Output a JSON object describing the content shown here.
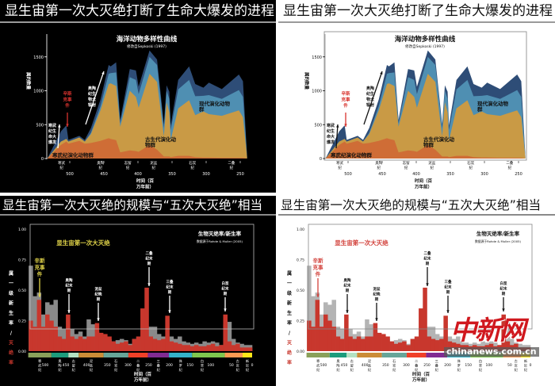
{
  "panels": [
    {
      "title": "显生宙第一次大灭绝打断了生命大爆发的进程",
      "theme": "dark",
      "chart": 0
    },
    {
      "title": "显生宙第一次大灭绝打断了生命大爆发的进程",
      "theme": "light",
      "chart": 0
    },
    {
      "title": "显生宙第一次大灭绝的规模与“五次大灭绝”相当",
      "theme": "dark",
      "chart": 1
    },
    {
      "title": "显生宙第一次大灭绝的规模与“五次大灭绝”相当",
      "theme": "light",
      "chart": 1
    }
  ],
  "watermark": {
    "logo": "中新网",
    "site": "chinanews.com.cn"
  },
  "colors": {
    "cambrian_fauna": "#cf6d36",
    "paleozoic_fauna": "#c99a45",
    "modern_fauna": "#4f8fb2",
    "top_layer": "#2e4d77",
    "extinction": "#c8372d",
    "origination_dark": "#8a8a8a",
    "origination_light": "#b4b4b4",
    "sinsk_label": "#d8332e",
    "highlight_dark": "#e3d64a",
    "highlight_light": "#d2403a"
  },
  "chart_data": [
    {
      "type": "area",
      "stacked": true,
      "title": "海洋动物多样性曲线",
      "subtitle": "修改自Sepkoski (1997)",
      "ylabel": "属的数量",
      "xlabel": "时间（百万年前）",
      "x_reversed": true,
      "ylim": [
        0,
        1800
      ],
      "yticks": [
        0,
        500,
        1000,
        1500
      ],
      "xticks": [
        500,
        450,
        400,
        350,
        300,
        250
      ],
      "period_labels": [
        {
          "label": "寒武纪",
          "at": 512
        },
        {
          "label": "奥陶纪",
          "at": 455
        },
        {
          "label": "志留纪",
          "at": 415
        },
        {
          "label": "泥盆纪",
          "at": 377
        },
        {
          "label": "石炭纪",
          "at": 320
        },
        {
          "label": "二叠纪",
          "at": 263
        }
      ],
      "x": [
        533,
        513,
        505,
        502,
        486,
        478,
        469,
        455,
        443,
        440,
        432,
        426,
        412,
        403,
        399,
        383,
        372,
        362,
        358,
        354,
        352,
        341,
        325,
        316,
        304,
        296,
        277,
        252,
        246,
        240
      ],
      "series": [
        {
          "name": "寒武纪演化动物群",
          "values": [
            0,
            200,
            250,
            220,
            260,
            220,
            230,
            260,
            300,
            290,
            270,
            90,
            120,
            110,
            100,
            200,
            130,
            30,
            30,
            30,
            20,
            40,
            40,
            20,
            15,
            15,
            10,
            10,
            10,
            0
          ]
        },
        {
          "name": "古生代演化动物群",
          "values": [
            0,
            50,
            40,
            30,
            50,
            30,
            130,
            450,
            800,
            820,
            800,
            380,
            880,
            800,
            650,
            1050,
            1000,
            300,
            800,
            650,
            250,
            700,
            820,
            620,
            680,
            640,
            620,
            700,
            600,
            20
          ]
        },
        {
          "name": "现代演化动物群",
          "values": [
            0,
            0,
            0,
            0,
            0,
            0,
            20,
            60,
            150,
            150,
            200,
            50,
            200,
            250,
            200,
            250,
            250,
            120,
            170,
            200,
            150,
            280,
            300,
            280,
            230,
            280,
            250,
            300,
            300,
            15
          ]
        },
        {
          "values": [
            0,
            150,
            200,
            25,
            25,
            25,
            70,
            100,
            130,
            100,
            150,
            50,
            120,
            140,
            110,
            95,
            80,
            60,
            80,
            105,
            70,
            140,
            200,
            180,
            120,
            185,
            145,
            230,
            230,
            5
          ]
        }
      ],
      "annotations": [
        {
          "text": "寒武纪生命大爆发",
          "arrow": "up"
        },
        {
          "text": "辛斯克事件",
          "arrow": "down",
          "color": "red"
        },
        {
          "text": "奥陶纪生物大辐射",
          "arrow": "up-right"
        }
      ]
    },
    {
      "type": "bar",
      "title": "生物灭绝率/新生率",
      "subtitle": "数据源于Rohde & Muller (2005)",
      "highlight": "显生宙第一次大灭绝",
      "ylabel_origination": "属一级新生率",
      "ylabel_sep": "/",
      "ylabel_extinction": "灭绝率",
      "xlabel": "时间（百万年前）",
      "x_reversed": true,
      "ylim": [
        0,
        1
      ],
      "yticks": [
        "0.00",
        "0.25",
        "0.50",
        "0.75",
        "1.00"
      ],
      "xticks": [
        500,
        450,
        400,
        350,
        300,
        250,
        200,
        150,
        100,
        50,
        0
      ],
      "bin_start": [
        540,
        530,
        520,
        510,
        500,
        490,
        480,
        470,
        460,
        450,
        440,
        430,
        420,
        410,
        400,
        390,
        380,
        370,
        360,
        350,
        340,
        330,
        320,
        310,
        300,
        290,
        280,
        270,
        260,
        250,
        240,
        230,
        220,
        210,
        200,
        190,
        180,
        170,
        160,
        150,
        140,
        130,
        120,
        110,
        100,
        90,
        80,
        70,
        60,
        50,
        40,
        30,
        20,
        10
      ],
      "series": [
        {
          "name": "新生率",
          "values": [
            0.7,
            0.45,
            0.48,
            0.3,
            0.4,
            0.38,
            0.42,
            0.2,
            0.18,
            0.15,
            0.18,
            0.14,
            0.16,
            0.12,
            0.26,
            0.22,
            0.16,
            0.1,
            0.12,
            0.1,
            0.08,
            0.09,
            0.1,
            0.09,
            0.06,
            0.1,
            0.12,
            0.1,
            0.08,
            0.2,
            0.2,
            0.14,
            0.12,
            0.08,
            0.12,
            0.1,
            0.12,
            0.08,
            0.07,
            0.06,
            0.07,
            0.06,
            0.08,
            0.07,
            0.08,
            0.07,
            0.05,
            0.22,
            0.24,
            0.1,
            0.07,
            0.06,
            0.05,
            0.05
          ]
        },
        {
          "name": "灭绝率",
          "values": [
            0.25,
            0.2,
            0.42,
            0.2,
            0.3,
            0.25,
            0.2,
            0.12,
            0.1,
            0.3,
            0.12,
            0.1,
            0.12,
            0.1,
            0.12,
            0.12,
            0.23,
            0.15,
            0.14,
            0.12,
            0.08,
            0.06,
            0.07,
            0.08,
            0.05,
            0.1,
            0.12,
            0.35,
            0.52,
            0.12,
            0.1,
            0.09,
            0.1,
            0.29,
            0.08,
            0.07,
            0.06,
            0.05,
            0.05,
            0.04,
            0.05,
            0.04,
            0.04,
            0.05,
            0.06,
            0.04,
            0.05,
            0.3,
            0.08,
            0.05,
            0.06,
            0.03,
            0.03,
            0.03
          ]
        }
      ],
      "periods": [
        {
          "label": "寒武纪",
          "from": 541,
          "to": 485,
          "color": "#8aa05a"
        },
        {
          "label": "奥陶纪",
          "from": 485,
          "to": 444,
          "color": "#1c9c7c"
        },
        {
          "label": "志留纪",
          "from": 444,
          "to": 419,
          "color": "#b3e1c2"
        },
        {
          "label": "泥盆纪",
          "from": 419,
          "to": 359,
          "color": "#cb8c37"
        },
        {
          "label": "石炭纪",
          "from": 359,
          "to": 299,
          "color": "#67a599"
        },
        {
          "label": "二叠纪",
          "from": 299,
          "to": 252,
          "color": "#f04028"
        },
        {
          "label": "三叠纪",
          "from": 252,
          "to": 201,
          "color": "#812b92"
        },
        {
          "label": "侏罗纪",
          "from": 201,
          "to": 145,
          "color": "#34b2c9"
        },
        {
          "label": "白垩纪",
          "from": 145,
          "to": 66,
          "color": "#7fc64e"
        },
        {
          "label": "古近纪",
          "from": 66,
          "to": 23,
          "color": "#fd9a52"
        },
        {
          "label": "新近纪",
          "from": 23,
          "to": 0,
          "color": "#ffe619"
        }
      ],
      "events": [
        {
          "text": "辛斯克事件",
          "at": 513,
          "highlight": true
        },
        {
          "text": "奥陶纪末期",
          "at": 445
        },
        {
          "text": "泥盆纪晚期",
          "at": 372
        },
        {
          "text": "二叠纪末期",
          "at": 252
        },
        {
          "text": "三叠纪末期",
          "at": 201
        },
        {
          "text": "白垩纪末期",
          "at": 66
        }
      ]
    }
  ]
}
